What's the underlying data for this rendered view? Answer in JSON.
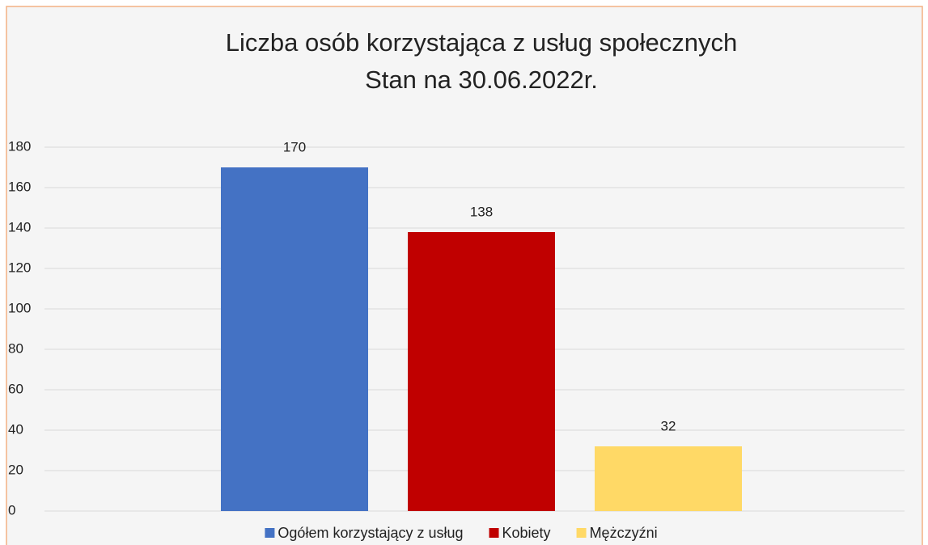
{
  "chart_data": {
    "type": "bar",
    "title": "Liczba osób korzystająca z usług społecznych",
    "subtitle": "Stan na 30.06.2022r.",
    "categories": [
      null
    ],
    "series": [
      {
        "name": "Ogółem korzystający z usług",
        "color": "#4472c4",
        "values": [
          170
        ]
      },
      {
        "name": "Kobiety",
        "color": "#c00000",
        "values": [
          138
        ]
      },
      {
        "name": "Mężczyźni",
        "color": "#ffd966",
        "values": [
          32
        ]
      }
    ],
    "ylim": [
      0,
      180
    ],
    "yticks": [
      0,
      20,
      40,
      60,
      80,
      100,
      120,
      140,
      160,
      180
    ],
    "grid": true,
    "legend": "bottom",
    "data_labels": true
  }
}
